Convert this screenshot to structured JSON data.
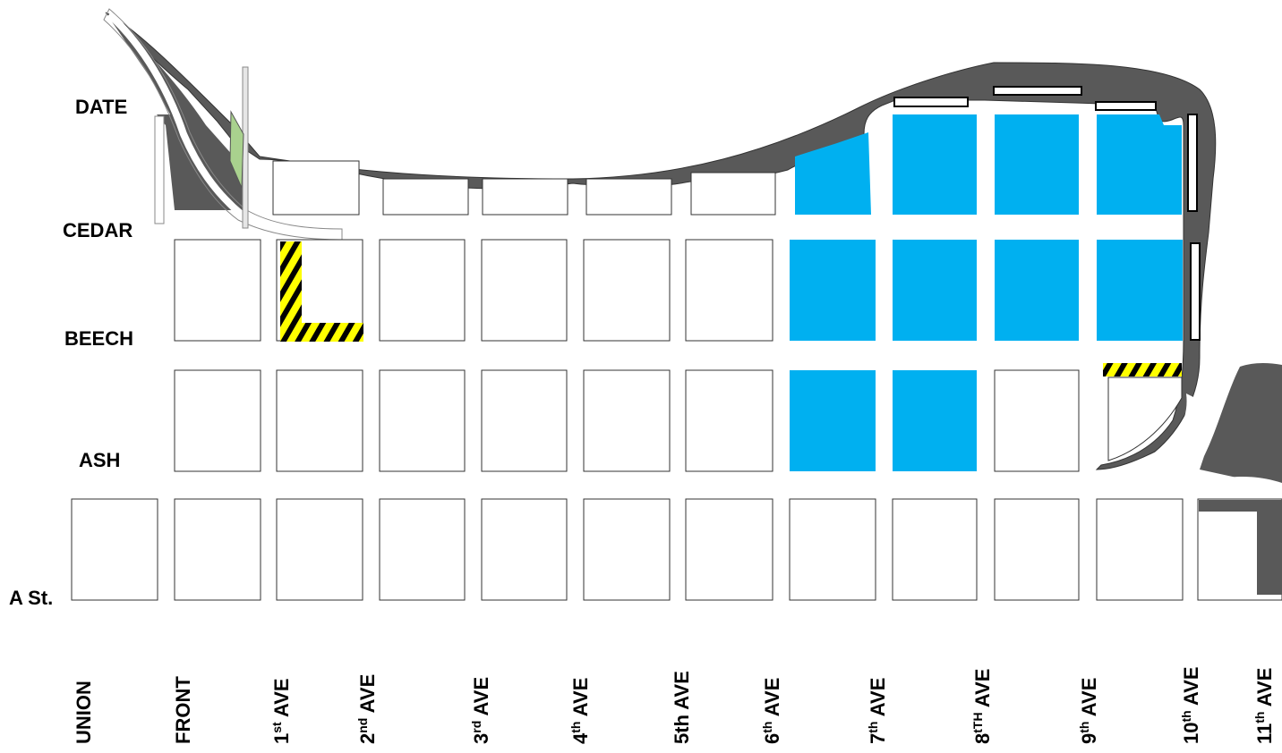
{
  "colors": {
    "block_fill": "#ffffff",
    "block_stroke": "#333333",
    "highlight_blue": "#00b0f0",
    "waterfront_gray": "#595959",
    "green_area": "#a9d18e",
    "hazard_yellow": "#ffff00",
    "hazard_black": "#000000"
  },
  "streets": [
    {
      "id": "date",
      "label": "DATE"
    },
    {
      "id": "cedar",
      "label": "CEDAR"
    },
    {
      "id": "beech",
      "label": "BEECH"
    },
    {
      "id": "ash",
      "label": "ASH"
    },
    {
      "id": "a",
      "label": "A St."
    }
  ],
  "avenues": [
    {
      "id": "union",
      "base": "UNION",
      "sup": "",
      "rest": ""
    },
    {
      "id": "front",
      "base": "FRONT",
      "sup": "",
      "rest": ""
    },
    {
      "id": "1st",
      "base": "1",
      "sup": "st",
      "rest": "  AVE"
    },
    {
      "id": "2nd",
      "base": "2",
      "sup": "nd",
      "rest": " AVE"
    },
    {
      "id": "3rd",
      "base": "3",
      "sup": "rd",
      "rest": " AVE"
    },
    {
      "id": "4th",
      "base": "4",
      "sup": "th",
      "rest": " AVE"
    },
    {
      "id": "5th",
      "base": "5th AVE",
      "sup": "",
      "rest": ""
    },
    {
      "id": "6th",
      "base": "6",
      "sup": "th",
      "rest": " AVE"
    },
    {
      "id": "7th",
      "base": "7",
      "sup": "th",
      "rest": "  AVE"
    },
    {
      "id": "8th",
      "base": "8",
      "sup": "tTH",
      "rest": " AVE"
    },
    {
      "id": "9th",
      "base": "9",
      "sup": "th",
      "rest": " AVE"
    },
    {
      "id": "10th",
      "base": "10",
      "sup": "th",
      "rest": " AVE"
    },
    {
      "id": "11th",
      "base": "11",
      "sup": "th",
      "rest": " AVE"
    }
  ],
  "highlighted_blocks": [
    {
      "row": "date-cedar",
      "between": [
        "6th",
        "10th"
      ],
      "count": 4
    },
    {
      "row": "cedar-beech",
      "between": [
        "6th",
        "10th"
      ],
      "count": 4
    },
    {
      "row": "beech-ash",
      "between": [
        "6th",
        "8th"
      ],
      "count": 2
    }
  ],
  "hazard_zones": [
    {
      "id": "hazard-1st-ave",
      "location": "1st AVE between Cedar and Beech, along Beech to 2nd AVE"
    },
    {
      "id": "hazard-9th-ave",
      "location": "Beech between 9th and 10th AVE"
    }
  ]
}
